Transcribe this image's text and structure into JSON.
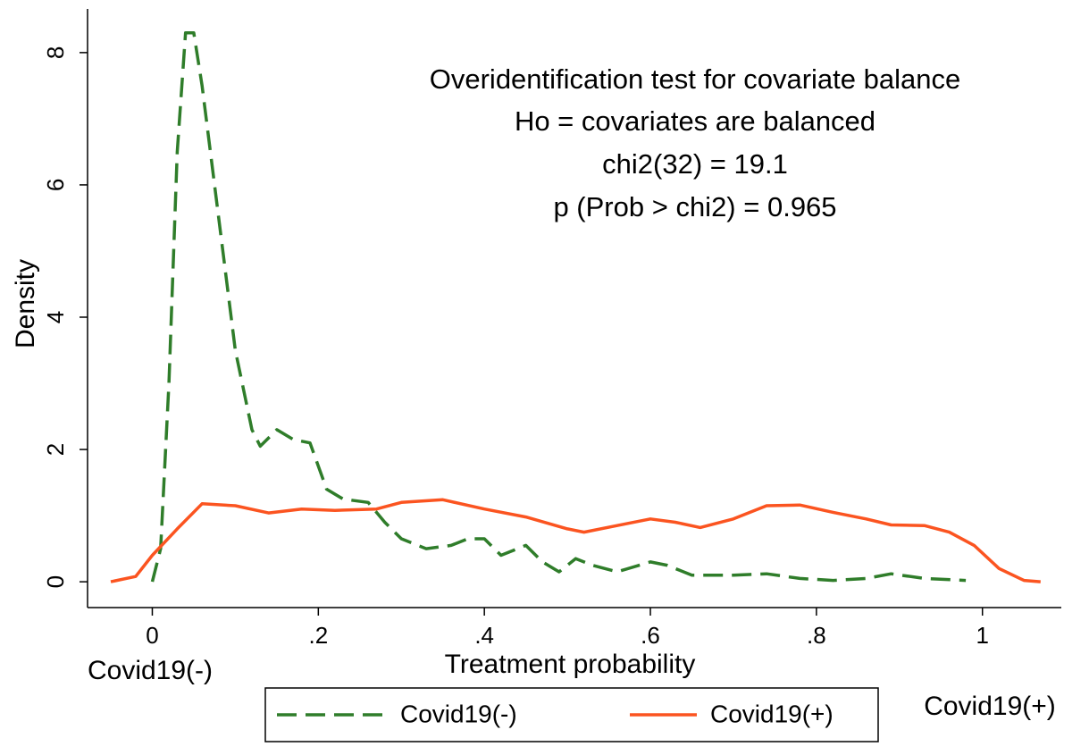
{
  "chart_data": {
    "type": "line",
    "xlabel": "Treatment probability",
    "ylabel": "Density",
    "annotations": [
      "Overidentification test for covariate balance",
      "Ho = covariates are balanced",
      "chi2(32) = 19.1",
      "p (Prob > chi2)  =   0.965"
    ],
    "x_end_labels": [
      "Covid19(-)",
      "Covid19(+)"
    ],
    "xlim": [
      -0.078,
      1.095
    ],
    "ylim": [
      -0.39,
      8.66
    ],
    "xticks": [
      0,
      {
        "value": 0.2,
        "label": ".2"
      },
      {
        "value": 0.4,
        "label": ".4"
      },
      {
        "value": 0.6,
        "label": ".6"
      },
      {
        "value": 0.8,
        "label": ".8"
      },
      1
    ],
    "yticks": [
      0,
      2,
      4,
      6,
      8
    ],
    "legend": "bottom",
    "series": [
      {
        "name": "Covid19(-)",
        "color": "#2f7d2a",
        "dash": true,
        "x": [
          0,
          0.01,
          0.02,
          0.03,
          0.04,
          0.05,
          0.06,
          0.08,
          0.1,
          0.12,
          0.13,
          0.15,
          0.17,
          0.19,
          0.21,
          0.23,
          0.26,
          0.28,
          0.3,
          0.33,
          0.36,
          0.38,
          0.4,
          0.42,
          0.45,
          0.47,
          0.49,
          0.51,
          0.53,
          0.56,
          0.6,
          0.62,
          0.65,
          0.7,
          0.74,
          0.78,
          0.82,
          0.86,
          0.89,
          0.93,
          0.98
        ],
        "values": [
          0,
          0.5,
          3,
          6.5,
          8.3,
          8.3,
          7.5,
          5.5,
          3.5,
          2.3,
          2.05,
          2.3,
          2.15,
          2.1,
          1.4,
          1.25,
          1.2,
          0.9,
          0.65,
          0.5,
          0.55,
          0.65,
          0.65,
          0.4,
          0.55,
          0.3,
          0.15,
          0.35,
          0.25,
          0.15,
          0.3,
          0.25,
          0.1,
          0.1,
          0.12,
          0.05,
          0.02,
          0.05,
          0.12,
          0.05,
          0.02
        ]
      },
      {
        "name": "Covid19(+)",
        "color": "#fb5420",
        "dash": false,
        "x": [
          -0.05,
          -0.02,
          0,
          0.03,
          0.06,
          0.1,
          0.14,
          0.18,
          0.22,
          0.27,
          0.3,
          0.35,
          0.4,
          0.45,
          0.5,
          0.52,
          0.56,
          0.6,
          0.63,
          0.66,
          0.7,
          0.74,
          0.78,
          0.82,
          0.86,
          0.89,
          0.93,
          0.96,
          0.99,
          1.02,
          1.05,
          1.07
        ],
        "values": [
          0,
          0.08,
          0.4,
          0.8,
          1.18,
          1.15,
          1.04,
          1.1,
          1.08,
          1.1,
          1.2,
          1.24,
          1.1,
          0.98,
          0.8,
          0.75,
          0.85,
          0.95,
          0.9,
          0.82,
          0.95,
          1.15,
          1.16,
          1.05,
          0.95,
          0.86,
          0.85,
          0.75,
          0.55,
          0.2,
          0.02,
          0
        ]
      }
    ]
  }
}
